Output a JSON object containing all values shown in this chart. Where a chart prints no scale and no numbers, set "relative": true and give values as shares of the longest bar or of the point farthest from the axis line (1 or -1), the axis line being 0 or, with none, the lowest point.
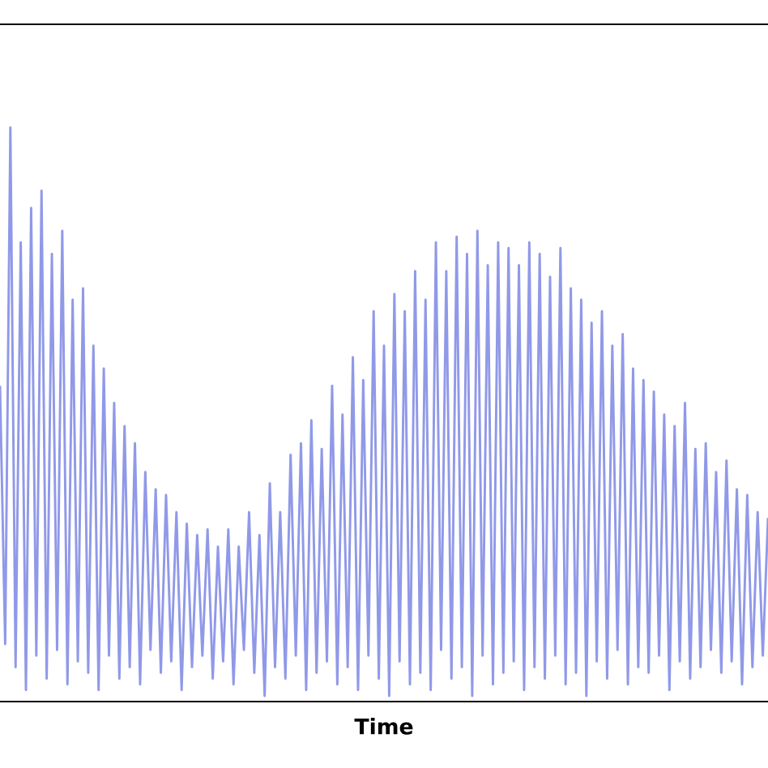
{
  "chart_data": {
    "type": "line",
    "xlabel": "Time",
    "relative": true,
    "categories": [
      null,
      null,
      null,
      null,
      null,
      null,
      null,
      null,
      null,
      null,
      null,
      null,
      null,
      null,
      null,
      null,
      null,
      null,
      null,
      null,
      null,
      null,
      null,
      null,
      null,
      null,
      null,
      null,
      null,
      null,
      null,
      null,
      null,
      null,
      null,
      null,
      null,
      null,
      null,
      null,
      null,
      null,
      null,
      null,
      null,
      null,
      null,
      null,
      null,
      null,
      null,
      null,
      null,
      null,
      null,
      null,
      null,
      null,
      null,
      null,
      null,
      null,
      null,
      null,
      null,
      null,
      null,
      null,
      null,
      null,
      null,
      null,
      null,
      null,
      null,
      null,
      null,
      null,
      null,
      null,
      null,
      null,
      null,
      null,
      null,
      null,
      null,
      null,
      null,
      null,
      null,
      null,
      null,
      null,
      null,
      null,
      null,
      null,
      null,
      null,
      null,
      null,
      null,
      null,
      null,
      null,
      null,
      null,
      null,
      null,
      null,
      null,
      null,
      null,
      null,
      null,
      null,
      null,
      null,
      null,
      null,
      null,
      null,
      null,
      null,
      null,
      null,
      null,
      null,
      null,
      null,
      null,
      null,
      null,
      null,
      null,
      null,
      null,
      null,
      null,
      null,
      null,
      null,
      null,
      null,
      null,
      null,
      null,
      null
    ],
    "series": [
      {
        "color": "#9099e8",
        "values": [
          0.55,
          0.1,
          1.0,
          0.06,
          0.8,
          0.02,
          0.86,
          0.08,
          0.89,
          0.04,
          0.78,
          0.09,
          0.82,
          0.03,
          0.7,
          0.07,
          0.72,
          0.05,
          0.62,
          0.02,
          0.58,
          0.08,
          0.52,
          0.04,
          0.48,
          0.06,
          0.45,
          0.03,
          0.4,
          0.09,
          0.37,
          0.05,
          0.36,
          0.07,
          0.33,
          0.02,
          0.31,
          0.06,
          0.29,
          0.08,
          0.3,
          0.04,
          0.27,
          0.07,
          0.3,
          0.03,
          0.27,
          0.09,
          0.33,
          0.05,
          0.29,
          0.01,
          0.38,
          0.06,
          0.33,
          0.04,
          0.43,
          0.08,
          0.45,
          0.02,
          0.49,
          0.05,
          0.44,
          0.07,
          0.55,
          0.03,
          0.5,
          0.06,
          0.6,
          0.02,
          0.56,
          0.08,
          0.68,
          0.04,
          0.62,
          0.01,
          0.71,
          0.07,
          0.68,
          0.03,
          0.75,
          0.05,
          0.7,
          0.02,
          0.8,
          0.09,
          0.75,
          0.04,
          0.81,
          0.06,
          0.78,
          0.01,
          0.82,
          0.08,
          0.76,
          0.03,
          0.8,
          0.05,
          0.79,
          0.07,
          0.76,
          0.02,
          0.8,
          0.06,
          0.78,
          0.04,
          0.74,
          0.08,
          0.79,
          0.03,
          0.72,
          0.05,
          0.7,
          0.01,
          0.66,
          0.07,
          0.68,
          0.04,
          0.62,
          0.09,
          0.64,
          0.03,
          0.58,
          0.06,
          0.56,
          0.05,
          0.54,
          0.08,
          0.5,
          0.02,
          0.48,
          0.07,
          0.52,
          0.04,
          0.44,
          0.06,
          0.45,
          0.09,
          0.4,
          0.05,
          0.42,
          0.07,
          0.37,
          0.03,
          0.36,
          0.06,
          0.33,
          0.08,
          0.32
        ]
      }
    ]
  }
}
